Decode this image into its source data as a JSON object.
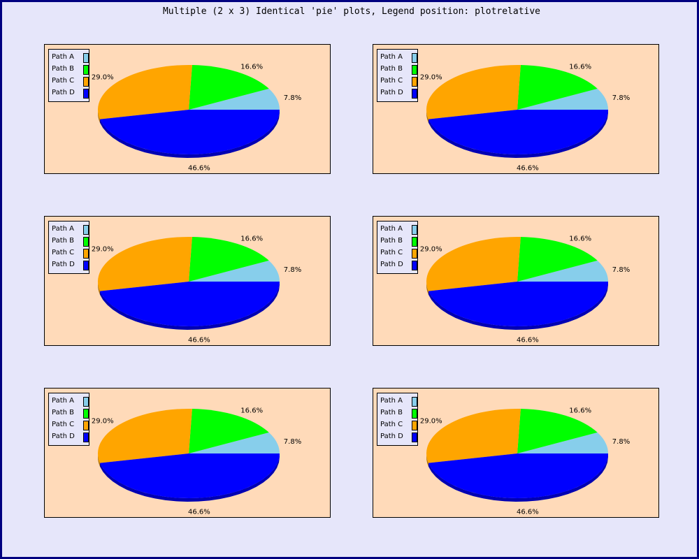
{
  "title": "Multiple (2 x 3) Identical 'pie' plots, Legend position: plotrelative",
  "chart_data": {
    "type": "pie",
    "layout": {
      "rows": 3,
      "cols": 2
    },
    "labels": [
      "Path A",
      "Path B",
      "Path C",
      "Path D"
    ],
    "values": [
      7.8,
      16.6,
      29.0,
      46.6
    ],
    "value_labels": [
      "7.8%",
      "16.6%",
      "29.0%",
      "46.6%"
    ],
    "colors": [
      "#87ceeb",
      "#00ff00",
      "#ffa500",
      "#0000ff"
    ],
    "legend_position": "top-left",
    "panel_background": "#ffdab9",
    "page_background": "#e6e6fa"
  }
}
